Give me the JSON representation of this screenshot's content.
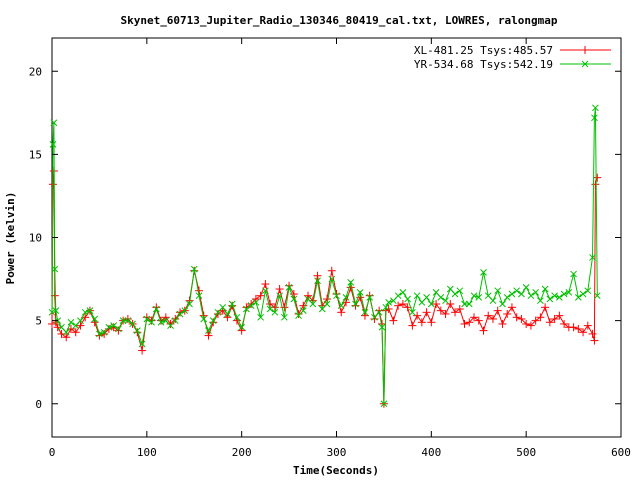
{
  "chart_data": {
    "type": "scatter",
    "title": "Skynet_60713_Jupiter_Radio_130346_80419_cal.txt, LOWRES, ralongmap",
    "xlabel": "Time(Seconds)",
    "ylabel": "Power (kelvin)",
    "xlim": [
      0,
      600
    ],
    "ylim": [
      -2,
      22
    ],
    "xticks": [
      0,
      100,
      200,
      300,
      400,
      500,
      600
    ],
    "yticks": [
      0,
      5,
      10,
      15,
      20
    ],
    "grid": false,
    "legend_position": "top-right",
    "series": [
      {
        "name": "XL-481.25 Tsys:485.57",
        "color": "#ff0000",
        "marker": "plus",
        "x": [
          0,
          1,
          2,
          3,
          4,
          6,
          10,
          15,
          20,
          25,
          30,
          35,
          40,
          45,
          50,
          55,
          60,
          65,
          70,
          75,
          80,
          85,
          90,
          95,
          100,
          105,
          110,
          115,
          120,
          125,
          130,
          135,
          140,
          145,
          150,
          155,
          160,
          165,
          170,
          175,
          180,
          185,
          190,
          195,
          200,
          205,
          210,
          215,
          220,
          225,
          230,
          235,
          240,
          245,
          250,
          255,
          260,
          265,
          270,
          275,
          280,
          285,
          290,
          295,
          300,
          305,
          310,
          315,
          320,
          325,
          330,
          335,
          340,
          345,
          348,
          350,
          352,
          355,
          360,
          365,
          370,
          375,
          380,
          385,
          390,
          395,
          400,
          405,
          410,
          415,
          420,
          425,
          430,
          435,
          440,
          445,
          450,
          455,
          460,
          465,
          470,
          475,
          480,
          485,
          490,
          495,
          500,
          505,
          510,
          515,
          520,
          525,
          530,
          535,
          540,
          545,
          550,
          555,
          560,
          565,
          570,
          572,
          573,
          575
        ],
        "values": [
          4.8,
          13.2,
          14.0,
          6.5,
          4.9,
          4.6,
          4.2,
          4.0,
          4.5,
          4.3,
          4.7,
          5.2,
          5.6,
          4.9,
          4.1,
          4.2,
          4.5,
          4.6,
          4.4,
          5.0,
          5.1,
          4.8,
          4.3,
          3.2,
          5.2,
          5.0,
          5.8,
          5.0,
          5.2,
          4.8,
          5.1,
          5.5,
          5.6,
          6.2,
          8.0,
          6.8,
          5.3,
          4.1,
          4.9,
          5.4,
          5.6,
          5.2,
          5.9,
          5.0,
          4.4,
          5.8,
          6.0,
          6.3,
          6.5,
          7.2,
          6.0,
          5.8,
          6.9,
          5.8,
          7.1,
          6.6,
          5.4,
          5.9,
          6.5,
          6.2,
          7.7,
          5.9,
          6.3,
          8.0,
          6.6,
          5.5,
          6.1,
          7.0,
          5.9,
          6.4,
          5.3,
          6.5,
          5.1,
          5.6,
          4.8,
          0.0,
          5.6,
          5.7,
          5.0,
          5.9,
          6.0,
          5.8,
          4.7,
          5.3,
          4.9,
          5.5,
          4.9,
          6.0,
          5.6,
          5.4,
          6.0,
          5.5,
          5.7,
          4.8,
          4.9,
          5.2,
          5.0,
          4.4,
          5.3,
          5.1,
          5.6,
          4.8,
          5.4,
          5.8,
          5.2,
          5.1,
          4.8,
          4.7,
          5.0,
          5.2,
          5.8,
          4.9,
          5.1,
          5.3,
          4.8,
          4.6,
          4.6,
          4.5,
          4.3,
          4.7,
          4.2,
          3.8,
          13.2,
          13.6
        ]
      },
      {
        "name": "YR-534.68 Tsys:542.19",
        "color": "#00c000",
        "marker": "cross",
        "x": [
          0,
          1,
          2,
          3,
          4,
          6,
          10,
          15,
          20,
          25,
          30,
          35,
          40,
          45,
          50,
          55,
          60,
          65,
          70,
          75,
          80,
          85,
          90,
          95,
          100,
          105,
          110,
          115,
          120,
          125,
          130,
          135,
          140,
          145,
          150,
          155,
          160,
          165,
          170,
          175,
          180,
          185,
          190,
          195,
          200,
          205,
          210,
          215,
          220,
          225,
          230,
          235,
          240,
          245,
          250,
          255,
          260,
          265,
          270,
          275,
          280,
          285,
          290,
          295,
          300,
          305,
          310,
          315,
          320,
          325,
          330,
          335,
          340,
          345,
          348,
          350,
          352,
          355,
          360,
          365,
          370,
          375,
          380,
          385,
          390,
          395,
          400,
          405,
          410,
          415,
          420,
          425,
          430,
          435,
          440,
          445,
          450,
          455,
          460,
          465,
          470,
          475,
          480,
          485,
          490,
          495,
          500,
          505,
          510,
          515,
          520,
          525,
          530,
          535,
          540,
          545,
          550,
          555,
          560,
          565,
          570,
          572,
          573,
          575
        ],
        "values": [
          5.5,
          15.6,
          16.9,
          8.1,
          5.6,
          5.0,
          4.6,
          4.3,
          4.9,
          4.7,
          5.0,
          5.5,
          5.6,
          5.1,
          4.2,
          4.3,
          4.6,
          4.7,
          4.5,
          5.0,
          5.0,
          4.8,
          4.4,
          3.6,
          5.1,
          4.9,
          5.7,
          4.9,
          5.0,
          4.7,
          5.0,
          5.4,
          5.6,
          6.0,
          8.1,
          6.5,
          5.1,
          4.4,
          5.0,
          5.5,
          5.8,
          5.4,
          6.0,
          5.2,
          4.6,
          5.7,
          5.9,
          6.1,
          5.2,
          6.8,
          5.7,
          5.5,
          6.5,
          5.2,
          7.0,
          6.3,
          5.3,
          5.6,
          6.3,
          6.0,
          7.4,
          5.7,
          6.0,
          7.5,
          6.5,
          5.9,
          6.4,
          7.3,
          6.0,
          6.7,
          5.5,
          6.4,
          5.2,
          5.5,
          4.6,
          0.0,
          5.8,
          6.1,
          6.2,
          6.5,
          6.7,
          6.3,
          5.5,
          6.5,
          6.1,
          6.4,
          6.0,
          6.7,
          6.4,
          6.2,
          6.9,
          6.6,
          6.8,
          6.0,
          6.0,
          6.5,
          6.4,
          7.9,
          6.5,
          6.2,
          6.8,
          6.0,
          6.4,
          6.6,
          6.8,
          6.6,
          7.0,
          6.5,
          6.7,
          6.2,
          6.9,
          6.3,
          6.5,
          6.4,
          6.6,
          6.7,
          7.8,
          6.4,
          6.6,
          6.8,
          8.8,
          17.2,
          17.8,
          6.5
        ]
      }
    ]
  }
}
